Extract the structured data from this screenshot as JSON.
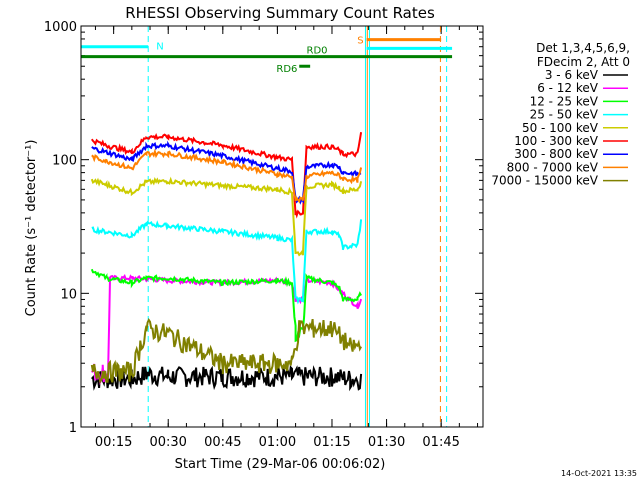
{
  "chart_data": {
    "type": "line",
    "title": "RHESSI Observing Summary Count Rates",
    "xlabel": "Start Time (29-Mar-06 00:06:02)",
    "ylabel": "Count Rate (s⁻¹ detector⁻¹)",
    "yscale": "log",
    "ylim": [
      1,
      1000
    ],
    "xlim_minutes": [
      6.03,
      116.5
    ],
    "x_ticks": [
      {
        "label": "00:15",
        "minute": 15
      },
      {
        "label": "00:30",
        "minute": 30
      },
      {
        "label": "00:45",
        "minute": 45
      },
      {
        "label": "01:00",
        "minute": 60
      },
      {
        "label": "01:15",
        "minute": 75
      },
      {
        "label": "01:30",
        "minute": 90
      },
      {
        "label": "01:45",
        "minute": 105
      }
    ],
    "y_ticks": [
      {
        "label": "1",
        "value": 1
      },
      {
        "label": "10",
        "value": 10
      },
      {
        "label": "100",
        "value": 100
      },
      {
        "label": "1000",
        "value": 1000
      }
    ],
    "legend": {
      "placement": "right",
      "header": [
        "Det 1,3,4,5,6,9,",
        "FDecim 2, Att 0"
      ]
    },
    "series": [
      {
        "name": "3 - 6 keV",
        "color": "#000000",
        "values": [
          [
            9,
            2.3
          ],
          [
            20,
            2.3
          ],
          [
            24,
            2.5
          ],
          [
            30,
            2.4
          ],
          [
            45,
            2.4
          ],
          [
            60,
            2.4
          ],
          [
            64,
            2.4
          ],
          [
            68,
            2.4
          ],
          [
            75,
            2.4
          ],
          [
            80,
            2.3
          ],
          [
            83,
            2.3
          ]
        ]
      },
      {
        "name": "6 - 12 keV",
        "color": "#ff00ff",
        "values": [
          [
            9,
            2.6
          ],
          [
            12,
            2.6
          ],
          [
            13.5,
            2.6
          ],
          [
            14,
            13
          ],
          [
            20,
            13
          ],
          [
            30,
            12.5
          ],
          [
            45,
            12
          ],
          [
            60,
            12.5
          ],
          [
            64,
            12
          ],
          [
            65,
            9
          ],
          [
            67,
            9
          ],
          [
            68,
            12.5
          ],
          [
            75,
            12
          ],
          [
            78,
            10
          ],
          [
            82,
            8
          ],
          [
            83,
            9
          ]
        ]
      },
      {
        "name": "12 - 25 keV",
        "color": "#00ff00",
        "values": [
          [
            9,
            15
          ],
          [
            13,
            13
          ],
          [
            20,
            12
          ],
          [
            24,
            13
          ],
          [
            30,
            13
          ],
          [
            45,
            12
          ],
          [
            60,
            12.5
          ],
          [
            64,
            12
          ],
          [
            65,
            5
          ],
          [
            67,
            5
          ],
          [
            68,
            13
          ],
          [
            75,
            12
          ],
          [
            77,
            11
          ],
          [
            78,
            9
          ],
          [
            82,
            9
          ],
          [
            83,
            10
          ]
        ]
      },
      {
        "name": "25 - 50 keV",
        "color": "#00ffff",
        "values": [
          [
            9,
            30
          ],
          [
            20,
            27
          ],
          [
            24,
            33
          ],
          [
            30,
            32
          ],
          [
            45,
            29
          ],
          [
            60,
            26
          ],
          [
            64,
            25
          ],
          [
            65,
            9
          ],
          [
            67,
            9
          ],
          [
            68,
            29
          ],
          [
            75,
            29
          ],
          [
            77,
            27
          ],
          [
            78,
            22
          ],
          [
            82,
            23
          ],
          [
            83,
            35
          ]
        ]
      },
      {
        "name": "50 - 100 keV",
        "color": "#cccc00",
        "values": [
          [
            9,
            70
          ],
          [
            13,
            65
          ],
          [
            20,
            57
          ],
          [
            24,
            68
          ],
          [
            30,
            69
          ],
          [
            45,
            64
          ],
          [
            60,
            60
          ],
          [
            64,
            57
          ],
          [
            65,
            20
          ],
          [
            67,
            20
          ],
          [
            68,
            63
          ],
          [
            75,
            65
          ],
          [
            77,
            62
          ],
          [
            78,
            58
          ],
          [
            82,
            60
          ],
          [
            83,
            68
          ]
        ]
      },
      {
        "name": "100 - 300 keV",
        "color": "#ff0000",
        "values": [
          [
            9,
            140
          ],
          [
            13,
            128
          ],
          [
            20,
            114
          ],
          [
            24,
            148
          ],
          [
            30,
            148
          ],
          [
            45,
            128
          ],
          [
            60,
            104
          ],
          [
            64,
            100
          ],
          [
            65,
            40
          ],
          [
            67,
            40
          ],
          [
            68,
            125
          ],
          [
            75,
            125
          ],
          [
            77,
            117
          ],
          [
            78,
            110
          ],
          [
            82,
            110
          ],
          [
            83,
            160
          ]
        ]
      },
      {
        "name": "300 - 800 keV",
        "color": "#0000ff",
        "values": [
          [
            9,
            122
          ],
          [
            13,
            114
          ],
          [
            20,
            100
          ],
          [
            24,
            127
          ],
          [
            30,
            127
          ],
          [
            45,
            107
          ],
          [
            60,
            86
          ],
          [
            64,
            82
          ],
          [
            65,
            50
          ],
          [
            67,
            50
          ],
          [
            68,
            88
          ],
          [
            75,
            92
          ],
          [
            77,
            88
          ],
          [
            78,
            80
          ],
          [
            82,
            78
          ],
          [
            83,
            80
          ]
        ]
      },
      {
        "name": "800 - 7000 keV",
        "color": "#ff8000",
        "values": [
          [
            9,
            105
          ],
          [
            13,
            98
          ],
          [
            20,
            86
          ],
          [
            24,
            111
          ],
          [
            30,
            111
          ],
          [
            45,
            96
          ],
          [
            60,
            78
          ],
          [
            64,
            74
          ],
          [
            65,
            50
          ],
          [
            67,
            50
          ],
          [
            68,
            75
          ],
          [
            75,
            80
          ],
          [
            77,
            76
          ],
          [
            78,
            72
          ],
          [
            82,
            70
          ],
          [
            83,
            85
          ]
        ]
      },
      {
        "name": "7000 - 15000 keV",
        "color": "#808000",
        "values": [
          [
            9,
            2.6
          ],
          [
            12,
            2.6
          ],
          [
            20,
            2.6
          ],
          [
            24,
            5.5
          ],
          [
            30,
            5
          ],
          [
            45,
            3
          ],
          [
            60,
            3
          ],
          [
            64,
            3
          ],
          [
            66,
            5.5
          ],
          [
            70,
            5.5
          ],
          [
            75,
            5.5
          ],
          [
            80,
            4
          ],
          [
            83,
            4
          ]
        ]
      }
    ],
    "flags": [
      {
        "label": "N",
        "color": "#00ffff",
        "level": 700,
        "from_minute": 6.03,
        "to_minute": 24.5
      },
      {
        "label": "S",
        "color": "#ff8000",
        "level": 790,
        "from_minute": 84.5,
        "to_minute": 105
      },
      {
        "label": "",
        "color": "#00ffff",
        "level": 680,
        "from_minute": 84.5,
        "to_minute": 108
      },
      {
        "label": "RD0",
        "color": "#008000",
        "level": 590,
        "from_minute": 6.03,
        "to_minute": 108
      },
      {
        "label": "RD6",
        "color": "#008000",
        "level": 500,
        "from_minute": 66,
        "to_minute": 69
      }
    ],
    "vertical_lines": [
      {
        "minute": 24.5,
        "color": "#00ffff",
        "style": "dashed"
      },
      {
        "minute": 84.2,
        "color": "#00ffff",
        "style": "solid"
      },
      {
        "minute": 84.7,
        "color": "#ff8000",
        "style": "solid"
      },
      {
        "minute": 85.3,
        "color": "#00ffff",
        "style": "solid"
      },
      {
        "minute": 104.8,
        "color": "#ff8000",
        "style": "dashed"
      },
      {
        "minute": 106.5,
        "color": "#00ffff",
        "style": "dashed"
      }
    ]
  },
  "footer": {
    "timestamp": "14-Oct-2021 13:35"
  }
}
